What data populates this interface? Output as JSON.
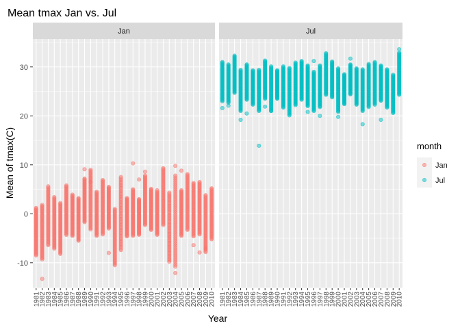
{
  "chart_data": {
    "type": "scatter",
    "title": "Mean tmax Jan vs. Jul",
    "xlabel": "Year",
    "ylabel": "Mean of tmax(C)",
    "ylim": [
      -15.2,
      35.7
    ],
    "yticks": [
      -10,
      0,
      10,
      20,
      30
    ],
    "years": [
      1981,
      1982,
      1983,
      1984,
      1985,
      1986,
      1987,
      1988,
      1989,
      1990,
      1991,
      1992,
      1993,
      1994,
      1995,
      1996,
      1997,
      1998,
      1999,
      2000,
      2001,
      2002,
      2003,
      2004,
      2005,
      2006,
      2007,
      2008,
      2009,
      2010
    ],
    "x_tick_labels": [
      "1981",
      "1982",
      "1983",
      "1984",
      "1985",
      "1986",
      "1987",
      "1988",
      "1989",
      "1990",
      "1991",
      "1992",
      "1993",
      "1994",
      "1995",
      "1996",
      "1997",
      "1998",
      "1999",
      "2000",
      "2001",
      "2002",
      "2003",
      "2004",
      "2005",
      "2006",
      "2007",
      "2008",
      "2009",
      "2010"
    ],
    "facets": [
      "Jan",
      "Jul"
    ],
    "legend": {
      "title": "month",
      "position": "right",
      "entries": [
        "Jan",
        "Jul"
      ]
    },
    "grid": true,
    "colors": {
      "Jan": "#F8766D",
      "Jul": "#00BFC4",
      "panel_bg": "#EBEBEB",
      "strip_bg": "#D9D9D9"
    },
    "series": [
      {
        "name": "Jan",
        "ranges": [
          [
            -8.5,
            1.2
          ],
          [
            -9.3,
            1.8
          ],
          [
            -6.4,
            5.6
          ],
          [
            -7.1,
            3.4
          ],
          [
            -8.2,
            2.2
          ],
          [
            -4.3,
            5.8
          ],
          [
            -4.5,
            3.9
          ],
          [
            -5.5,
            3.2
          ],
          [
            -1.7,
            7.2
          ],
          [
            -3.2,
            9.0
          ],
          [
            -4.5,
            4.5
          ],
          [
            -4.2,
            6.7
          ],
          [
            -3.0,
            5.5
          ],
          [
            -10.5,
            1.0
          ],
          [
            -7.4,
            7.5
          ],
          [
            -4.6,
            3.2
          ],
          [
            -4.5,
            5.0
          ],
          [
            -4.3,
            3.0
          ],
          [
            -2.3,
            7.8
          ],
          [
            -3.3,
            5.1
          ],
          [
            -4.3,
            4.5
          ],
          [
            -2.3,
            9.1
          ],
          [
            -9.8,
            4.3
          ],
          [
            -10.8,
            7.8
          ],
          [
            -4.5,
            4.8
          ],
          [
            -3.3,
            8.1
          ],
          [
            -4.6,
            6.3
          ],
          [
            -4.2,
            6.5
          ],
          [
            -7.8,
            3.8
          ],
          [
            -5.2,
            5.0
          ]
        ],
        "outliers": [
          [
            1982,
            -13.3
          ],
          [
            1989,
            9.1
          ],
          [
            1990,
            6.5
          ],
          [
            1992,
            6.9
          ],
          [
            1993,
            -8.0
          ],
          [
            1997,
            10.3
          ],
          [
            1998,
            7.0
          ],
          [
            1999,
            8.6
          ],
          [
            2001,
            4.8
          ],
          [
            2002,
            9.3
          ],
          [
            2004,
            9.8
          ],
          [
            2004,
            -12.1
          ],
          [
            2005,
            8.8
          ],
          [
            2007,
            -6.4
          ],
          [
            2008,
            -7.9
          ],
          [
            2009,
            -7.0
          ],
          [
            2010,
            5.2
          ]
        ]
      },
      {
        "name": "Jul",
        "ranges": [
          [
            23.0,
            31.0
          ],
          [
            22.7,
            30.5
          ],
          [
            24.7,
            32.3
          ],
          [
            21.0,
            29.4
          ],
          [
            23.3,
            30.5
          ],
          [
            22.3,
            29.3
          ],
          [
            21.0,
            29.4
          ],
          [
            23.5,
            31.3
          ],
          [
            21.0,
            30.1
          ],
          [
            23.5,
            29.3
          ],
          [
            21.7,
            30.1
          ],
          [
            20.1,
            29.8
          ],
          [
            22.2,
            30.9
          ],
          [
            23.3,
            31.2
          ],
          [
            22.0,
            30.3
          ],
          [
            21.0,
            29.0
          ],
          [
            21.8,
            30.3
          ],
          [
            24.3,
            32.8
          ],
          [
            23.8,
            31.1
          ],
          [
            20.8,
            29.7
          ],
          [
            22.4,
            28.5
          ],
          [
            24.4,
            30.5
          ],
          [
            22.3,
            29.7
          ],
          [
            21.0,
            29.5
          ],
          [
            21.8,
            30.6
          ],
          [
            22.3,
            31.0
          ],
          [
            23.1,
            30.3
          ],
          [
            21.7,
            29.5
          ],
          [
            20.6,
            28.4
          ],
          [
            24.3,
            32.9
          ]
        ],
        "outliers": [
          [
            1981,
            21.6
          ],
          [
            1982,
            22.1
          ],
          [
            1984,
            19.2
          ],
          [
            1985,
            20.5
          ],
          [
            1987,
            13.9
          ],
          [
            1988,
            21.9
          ],
          [
            1989,
            21.0
          ],
          [
            1995,
            20.8
          ],
          [
            1996,
            31.2
          ],
          [
            1997,
            20.0
          ],
          [
            2000,
            19.8
          ],
          [
            2002,
            31.7
          ],
          [
            2004,
            18.3
          ],
          [
            2007,
            19.2
          ],
          [
            2010,
            33.6
          ]
        ]
      }
    ]
  }
}
